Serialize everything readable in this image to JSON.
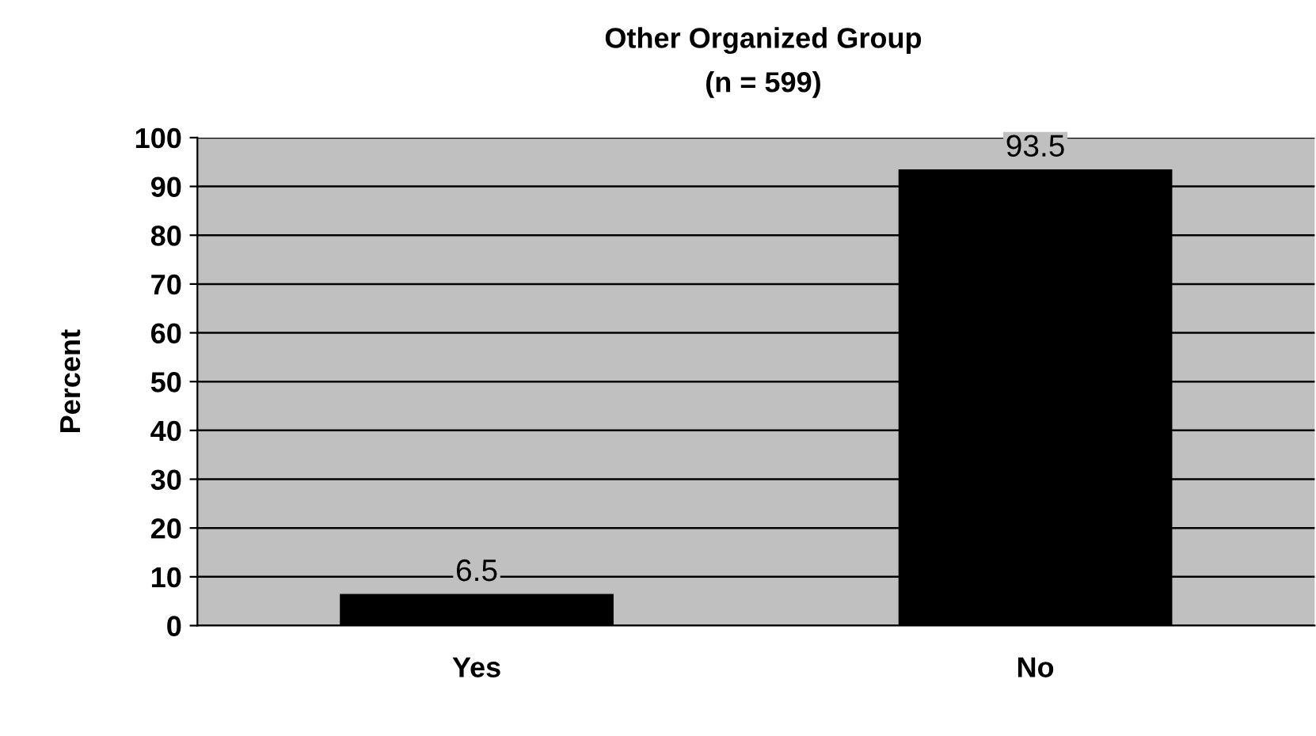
{
  "chart_data": {
    "type": "bar",
    "title": "Other Organized Group",
    "subtitle": "(n = 599)",
    "ylabel": "Percent",
    "categories": [
      "Yes",
      "No"
    ],
    "values": [
      6.5,
      93.5
    ],
    "color": "#000000",
    "ylim": [
      0,
      100
    ],
    "yticks": [
      0,
      10,
      20,
      30,
      40,
      50,
      60,
      70,
      80,
      90,
      100
    ],
    "grid": "y",
    "data_labels": true
  }
}
